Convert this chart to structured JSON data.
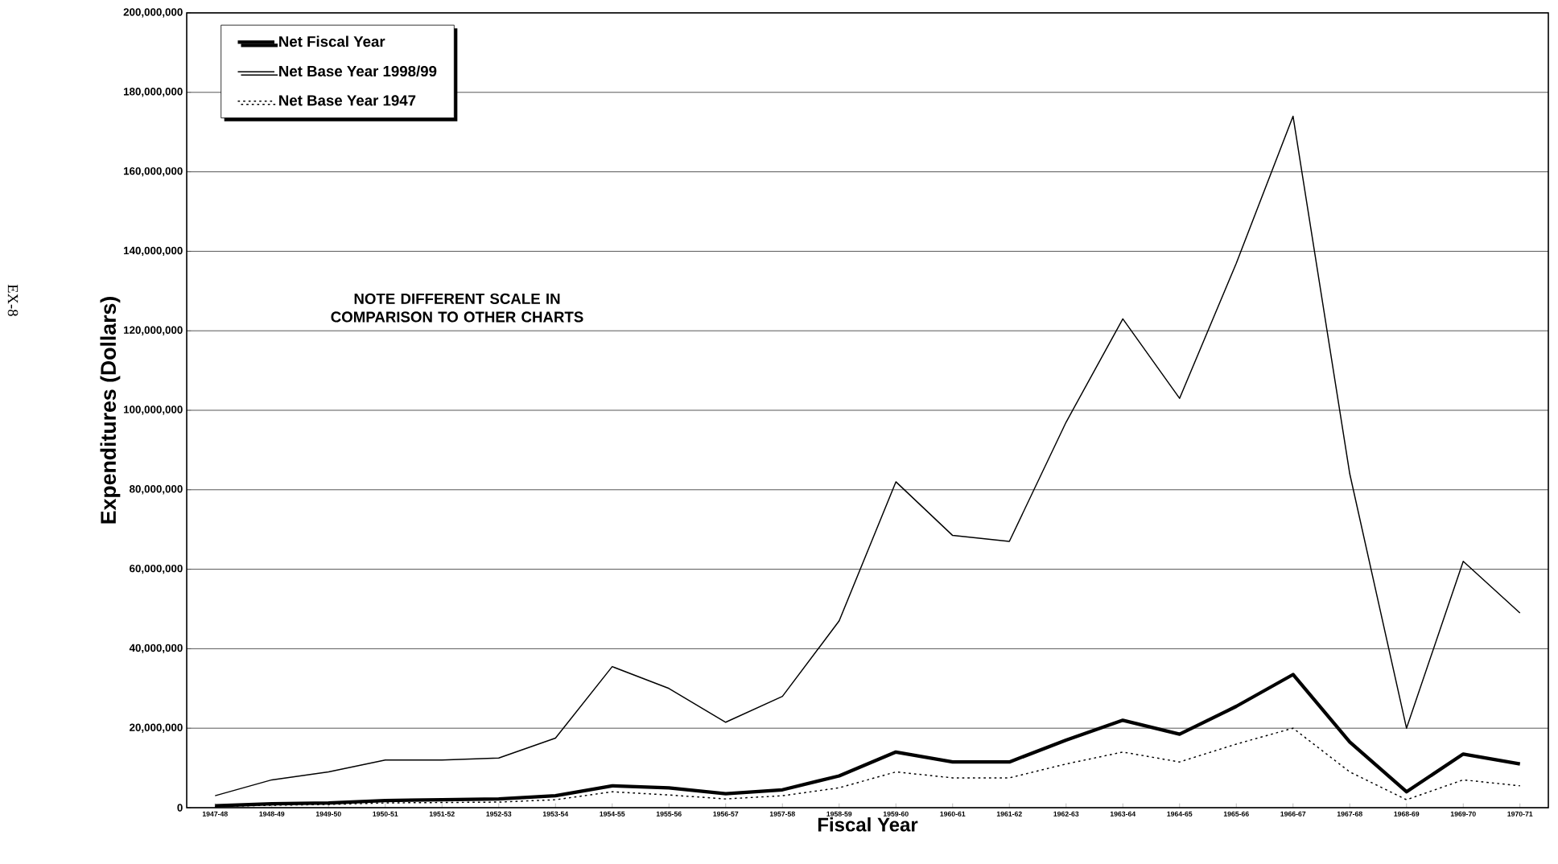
{
  "chart_data": {
    "type": "line",
    "xlabel": "Fiscal Year",
    "ylabel": "Expenditures (Dollars)",
    "categories": [
      "1947-48",
      "1948-49",
      "1949-50",
      "1950-51",
      "1951-52",
      "1952-53",
      "1953-54",
      "1954-55",
      "1955-56",
      "1956-57",
      "1957-58",
      "1958-59",
      "1959-60",
      "1960-61",
      "1961-62",
      "1962-63",
      "1963-64",
      "1964-65",
      "1965-66",
      "1966-67",
      "1967-68",
      "1968-69",
      "1969-70",
      "1970-71"
    ],
    "series": [
      {
        "name": "Net Fiscal Year",
        "color": "#000000",
        "line_style": "solid",
        "values": [
          500000,
          1000000,
          1200000,
          1800000,
          2000000,
          2200000,
          3000000,
          5500000,
          5000000,
          3500000,
          4500000,
          8000000,
          14000000,
          11500000,
          11500000,
          17000000,
          22000000,
          18500000,
          25500000,
          33500000,
          16500000,
          4000000,
          13500000,
          11000000
        ]
      },
      {
        "name": "Net Base Year 1998/99",
        "color": "#000000",
        "line_style": "solid",
        "values": [
          3000000,
          7000000,
          9000000,
          12000000,
          12000000,
          12500000,
          17500000,
          35500000,
          30000000,
          21500000,
          28000000,
          47000000,
          82000000,
          68500000,
          67000000,
          97000000,
          123000000,
          103000000,
          137000000,
          174000000,
          84000000,
          20000000,
          62000000,
          49000000
        ]
      },
      {
        "name": "Net Base Year 1947",
        "color": "#000000",
        "line_style": "dotted",
        "values": [
          300000,
          600000,
          800000,
          1200000,
          1300000,
          1400000,
          2000000,
          4000000,
          3200000,
          2200000,
          3000000,
          5000000,
          9000000,
          7500000,
          7500000,
          11000000,
          14000000,
          11500000,
          16000000,
          20000000,
          9000000,
          2000000,
          7000000,
          5500000
        ]
      }
    ],
    "ylim": [
      0,
      200000000
    ],
    "yticks": [
      0,
      {
        "value": 20000000,
        "label": "20,000,000"
      },
      {
        "value": 40000000,
        "label": "40,000,000"
      },
      {
        "value": 60000000,
        "label": "60,000,000"
      },
      {
        "value": 80000000,
        "label": "80,000,000"
      },
      {
        "value": 100000000,
        "label": "100,000,000"
      },
      {
        "value": 120000000,
        "label": "120,000,000"
      },
      {
        "value": 140000000,
        "label": "140,000,000"
      },
      {
        "value": 160000000,
        "label": "160,000,000"
      },
      {
        "value": 180000000,
        "label": "180,000,000"
      },
      {
        "value": 200000000,
        "label": "200,000,000"
      }
    ],
    "grid": "y",
    "legend": "top left",
    "annotations": [
      "NOTE DIFFERENT SCALE IN COMPARISON TO OTHER CHARTS",
      "EX-8"
    ]
  }
}
